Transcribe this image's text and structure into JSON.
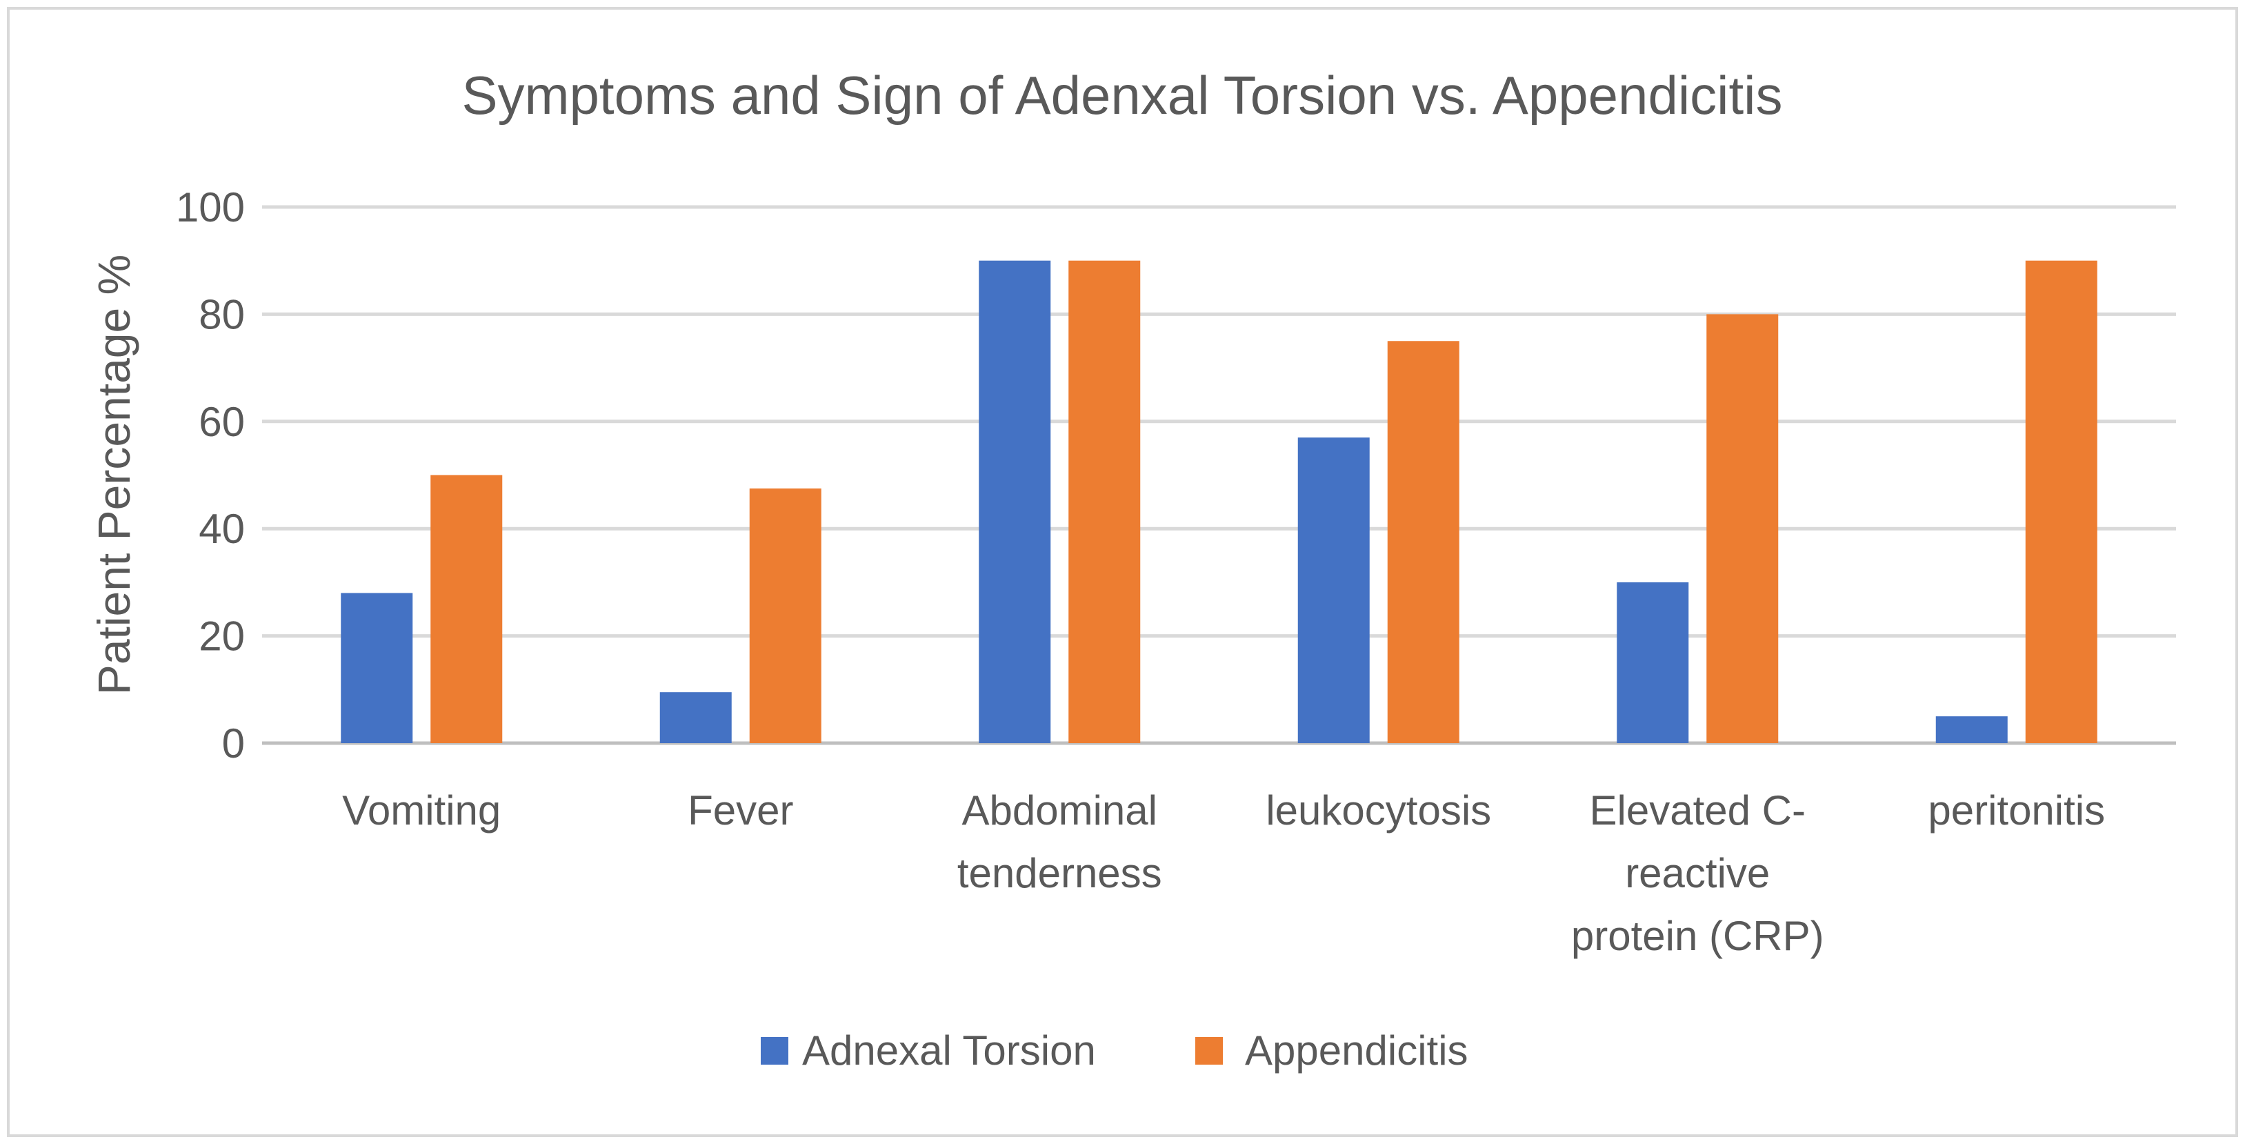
{
  "chart_data": {
    "type": "bar",
    "title": "Symptoms and Sign of Adenxal Torsion vs. Appendicitis",
    "xlabel": "",
    "ylabel": "Patient Percentage %",
    "ylim": [
      0,
      100
    ],
    "yticks": [
      0,
      20,
      40,
      60,
      80,
      100
    ],
    "grid": true,
    "legend_position": "bottom",
    "categories": [
      [
        "Vomiting"
      ],
      [
        "Fever"
      ],
      [
        "Abdominal",
        "tenderness"
      ],
      [
        "leukocytosis"
      ],
      [
        "Elevated C-",
        "reactive",
        "protein (CRP)"
      ],
      [
        "peritonitis"
      ]
    ],
    "series": [
      {
        "name": "Adnexal Torsion",
        "color": "#4472C4",
        "values": [
          28,
          9.5,
          90,
          57,
          30,
          5
        ]
      },
      {
        "name": "Appendicitis",
        "color": "#ED7D31",
        "values": [
          50,
          47.5,
          90,
          75,
          80,
          90
        ]
      }
    ]
  },
  "colors": {
    "gridline": "#D9D9D9",
    "axis_line": "#BFBFBF",
    "frame": "#D9D9D9",
    "text": "#595959"
  }
}
